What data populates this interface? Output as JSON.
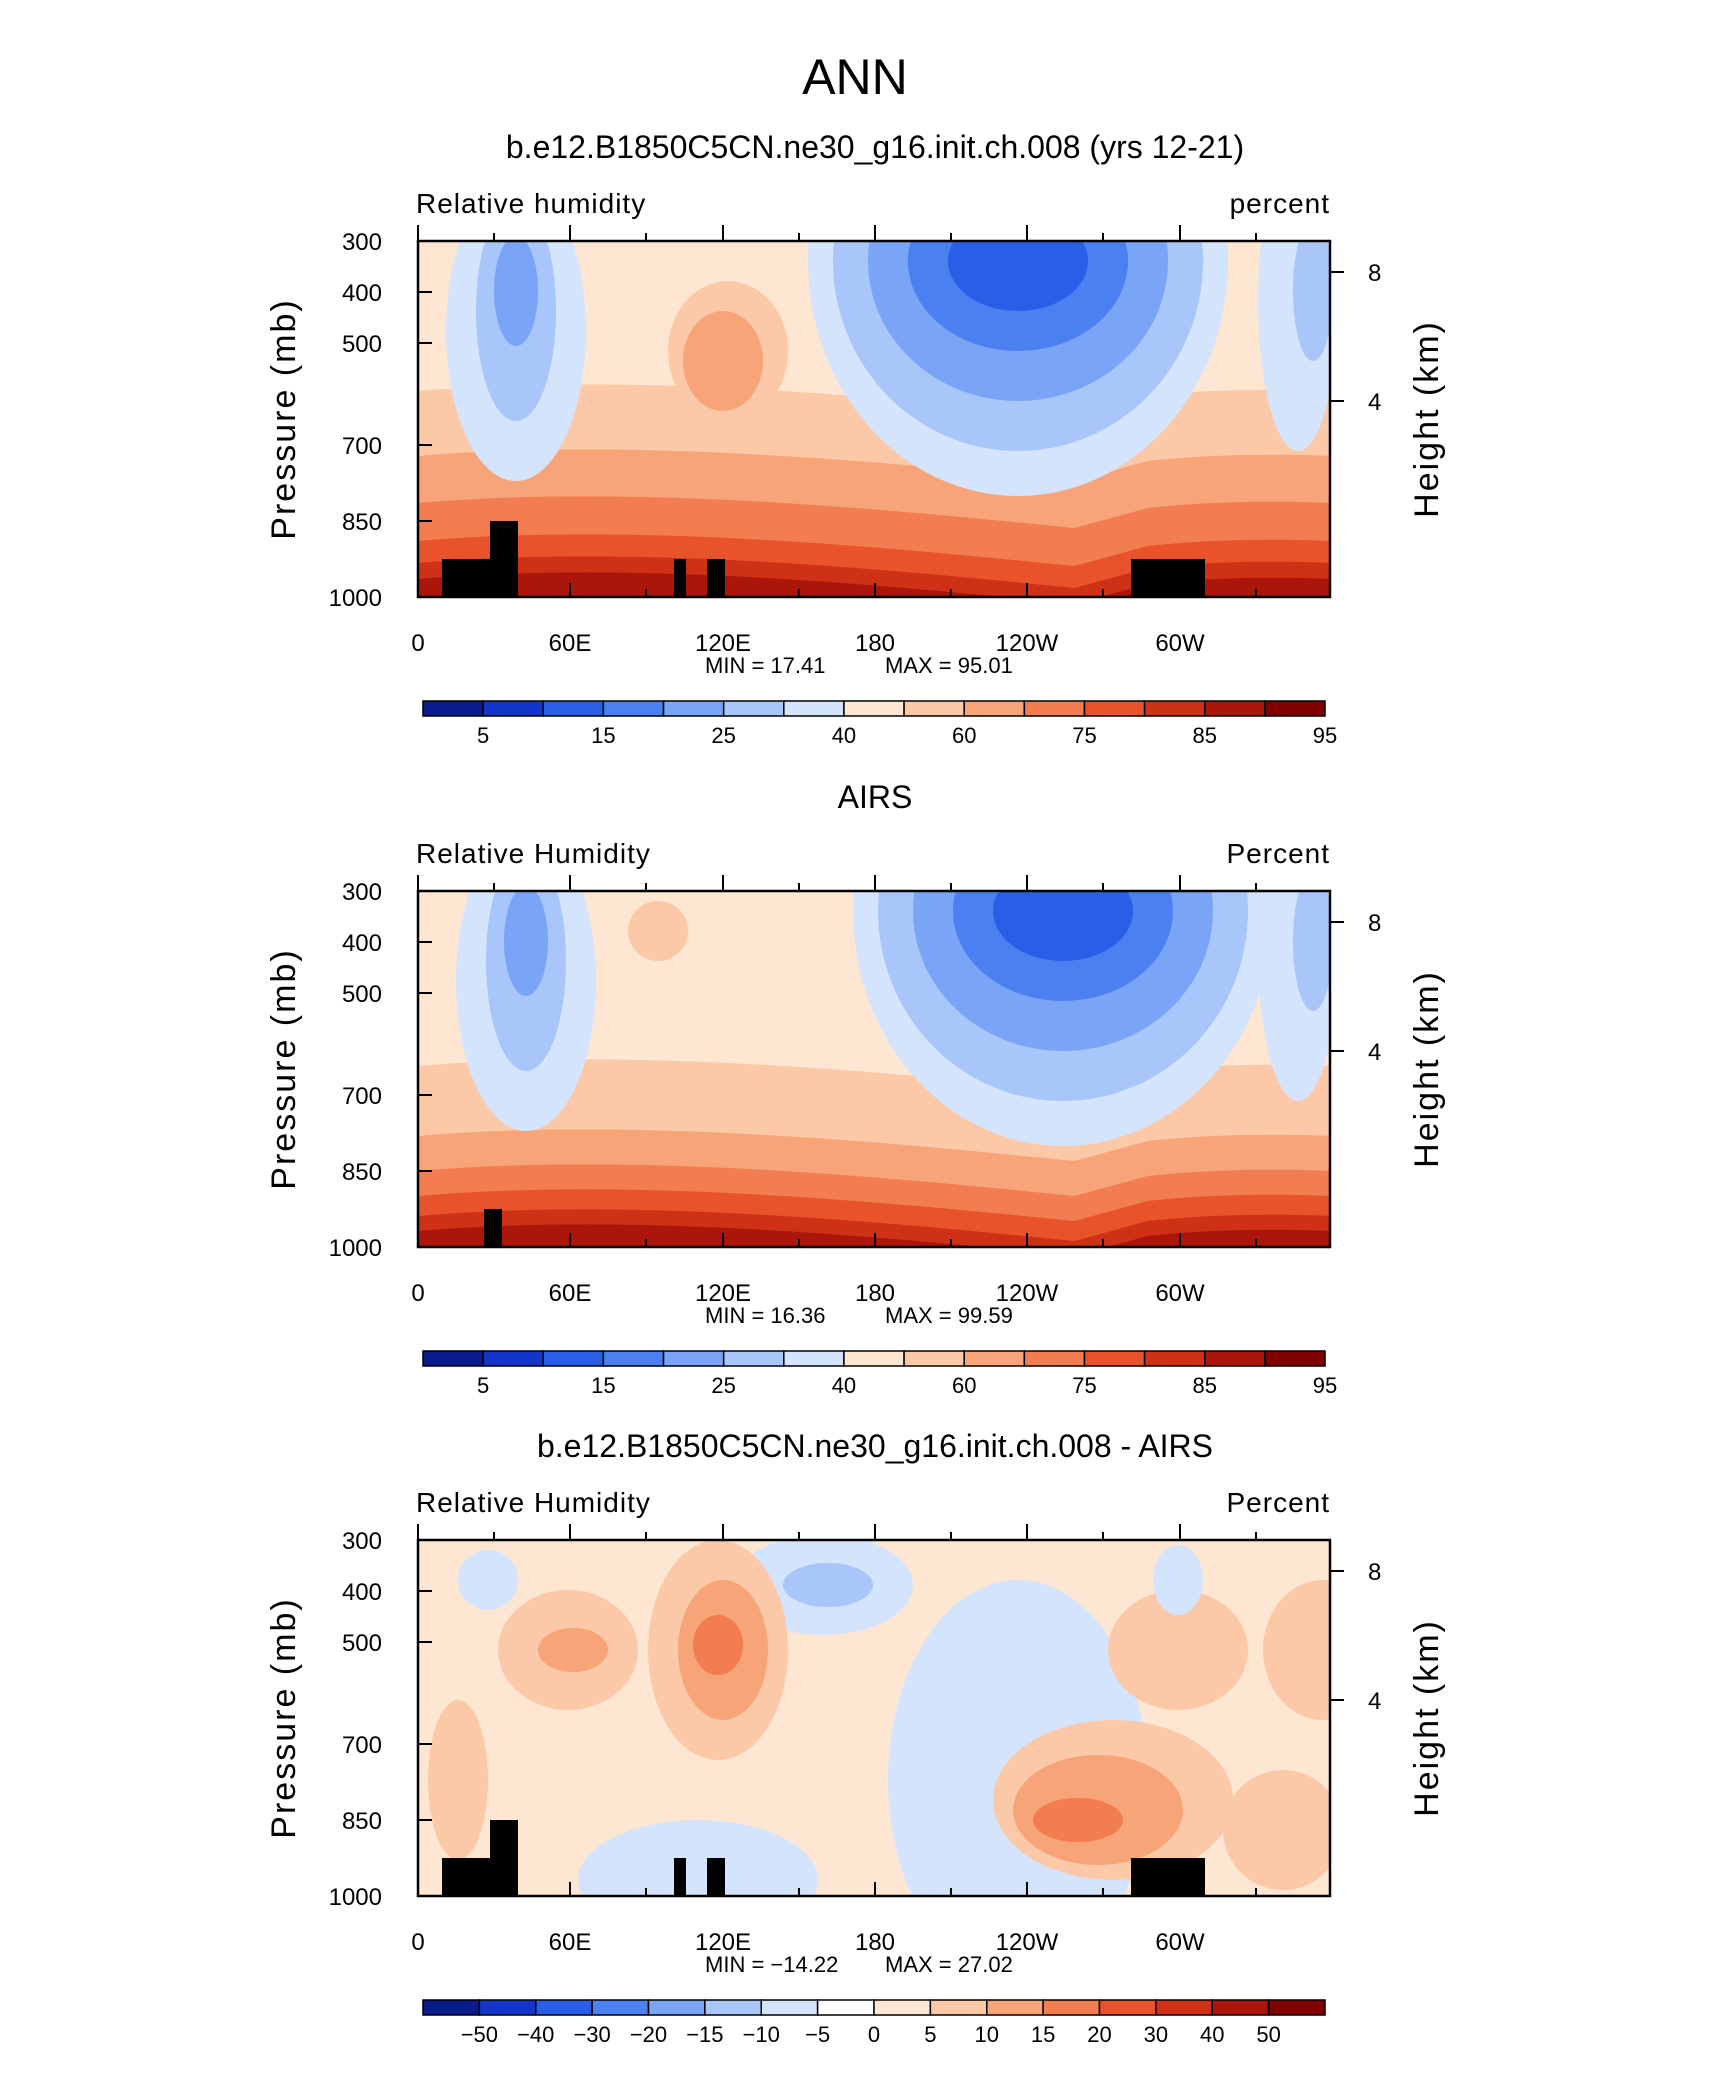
{
  "figure": {
    "title": "ANN"
  },
  "chart_data": [
    {
      "type": "heatmap",
      "title": "b.e12.B1850C5CN.ne30_g16.init.ch.008 (yrs 12-21)",
      "left_label": "Relative  humidity",
      "right_label": "percent",
      "xlabel": "",
      "ylabel": "Pressure  (mb)",
      "y2label": "Height  (km)",
      "x_ticks": [
        "0",
        "60E",
        "120E",
        "180",
        "120W",
        "60W"
      ],
      "y_ticks": [
        "300",
        "400",
        "500",
        "700",
        "850",
        "1000"
      ],
      "y2_ticks": [
        "8",
        "4"
      ],
      "min_text": "MIN  =    17.41",
      "max_text": "MAX  =    95.01",
      "colorbar_labels": [
        "5",
        "15",
        "25",
        "40",
        "60",
        "75",
        "85",
        "95"
      ],
      "colorbar_colors": [
        "#0a1b8c",
        "#1436c8",
        "#2a5ee6",
        "#4a80f0",
        "#7aa5f6",
        "#a8c6fa",
        "#d4e4fc",
        "#fde6d2",
        "#fbc9a8",
        "#f7a479",
        "#f27d50",
        "#e8532c",
        "#cf3116",
        "#aa170a",
        "#800000"
      ],
      "ylim": [
        1000,
        300
      ],
      "min": 17.41,
      "max": 95.01
    },
    {
      "type": "heatmap",
      "title": "AIRS",
      "left_label": "Relative  Humidity",
      "right_label": "Percent",
      "xlabel": "",
      "ylabel": "Pressure  (mb)",
      "y2label": "Height  (km)",
      "x_ticks": [
        "0",
        "60E",
        "120E",
        "180",
        "120W",
        "60W"
      ],
      "y_ticks": [
        "300",
        "400",
        "500",
        "700",
        "850",
        "1000"
      ],
      "y2_ticks": [
        "8",
        "4"
      ],
      "min_text": "MIN  =    16.36",
      "max_text": "MAX  =    99.59",
      "colorbar_labels": [
        "5",
        "15",
        "25",
        "40",
        "60",
        "75",
        "85",
        "95"
      ],
      "colorbar_colors": [
        "#0a1b8c",
        "#1436c8",
        "#2a5ee6",
        "#4a80f0",
        "#7aa5f6",
        "#a8c6fa",
        "#d4e4fc",
        "#fde6d2",
        "#fbc9a8",
        "#f7a479",
        "#f27d50",
        "#e8532c",
        "#cf3116",
        "#aa170a",
        "#800000"
      ],
      "ylim": [
        1000,
        300
      ],
      "min": 16.36,
      "max": 99.59
    },
    {
      "type": "heatmap",
      "title": "b.e12.B1850C5CN.ne30_g16.init.ch.008 - AIRS",
      "left_label": "Relative  Humidity",
      "right_label": "Percent",
      "xlabel": "",
      "ylabel": "Pressure  (mb)",
      "y2label": "Height  (km)",
      "x_ticks": [
        "0",
        "60E",
        "120E",
        "180",
        "120W",
        "60W"
      ],
      "y_ticks": [
        "300",
        "400",
        "500",
        "700",
        "850",
        "1000"
      ],
      "y2_ticks": [
        "8",
        "4"
      ],
      "min_text": "MIN  =  −14.22",
      "max_text": "MAX  =    27.02",
      "colorbar_labels": [
        "−50",
        "−40",
        "−30",
        "−20",
        "−15",
        "−10",
        "−5",
        "0",
        "5",
        "10",
        "15",
        "20",
        "30",
        "40",
        "50"
      ],
      "colorbar_colors": [
        "#0a1b8c",
        "#1436c8",
        "#2a5ee6",
        "#4a80f0",
        "#7aa5f6",
        "#a8c6fa",
        "#d4e4fc",
        "#ffffff",
        "#fde6d2",
        "#fbc9a8",
        "#f7a479",
        "#f27d50",
        "#e8532c",
        "#cf3116",
        "#aa170a",
        "#800000"
      ],
      "ylim": [
        1000,
        300
      ],
      "min": -14.22,
      "max": 27.02
    }
  ]
}
